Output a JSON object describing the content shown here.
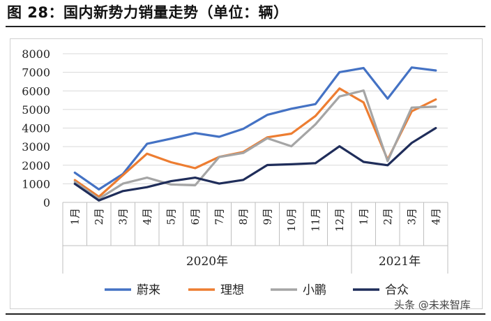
{
  "figure_title": "图 28：国内新势力销量走势（单位：辆）",
  "watermark": "头条 @未来智库",
  "chart_data": {
    "type": "line",
    "title": "图 28：国内新势力销量走势（单位：辆）",
    "x": [
      "1月",
      "2月",
      "3月",
      "4月",
      "5月",
      "6月",
      "7月",
      "8月",
      "9月",
      "10月",
      "11月",
      "12月",
      "1月",
      "2月",
      "3月",
      "4月"
    ],
    "x_groups": [
      {
        "label": "2020年",
        "start": 0,
        "end": 11
      },
      {
        "label": "2021年",
        "start": 12,
        "end": 15
      }
    ],
    "ylim": [
      0,
      8000
    ],
    "yticks": [
      0,
      1000,
      2000,
      3000,
      4000,
      5000,
      6000,
      7000,
      8000
    ],
    "grid": true,
    "legend_position": "bottom",
    "series": [
      {
        "name": "蔚来",
        "color": "#4472C4",
        "values": [
          1600,
          700,
          1530,
          3150,
          3430,
          3730,
          3530,
          3960,
          4710,
          5040,
          5290,
          7010,
          7230,
          5580,
          7260,
          7100
        ]
      },
      {
        "name": "理想",
        "color": "#ED7D31",
        "values": [
          1200,
          300,
          1470,
          2620,
          2160,
          1840,
          2450,
          2710,
          3500,
          3700,
          4650,
          6130,
          5380,
          2300,
          4900,
          5540
        ]
      },
      {
        "name": "小鹏",
        "color": "#A5A5A5",
        "values": [
          1100,
          190,
          1010,
          1330,
          960,
          920,
          2440,
          2660,
          3450,
          3020,
          4200,
          5700,
          6020,
          2220,
          5100,
          5150
        ]
      },
      {
        "name": "合众",
        "color": "#1F2D5A",
        "values": [
          1000,
          100,
          610,
          820,
          1140,
          1330,
          1010,
          1210,
          2010,
          2050,
          2110,
          3020,
          2180,
          2000,
          3200,
          4000
        ]
      }
    ]
  }
}
